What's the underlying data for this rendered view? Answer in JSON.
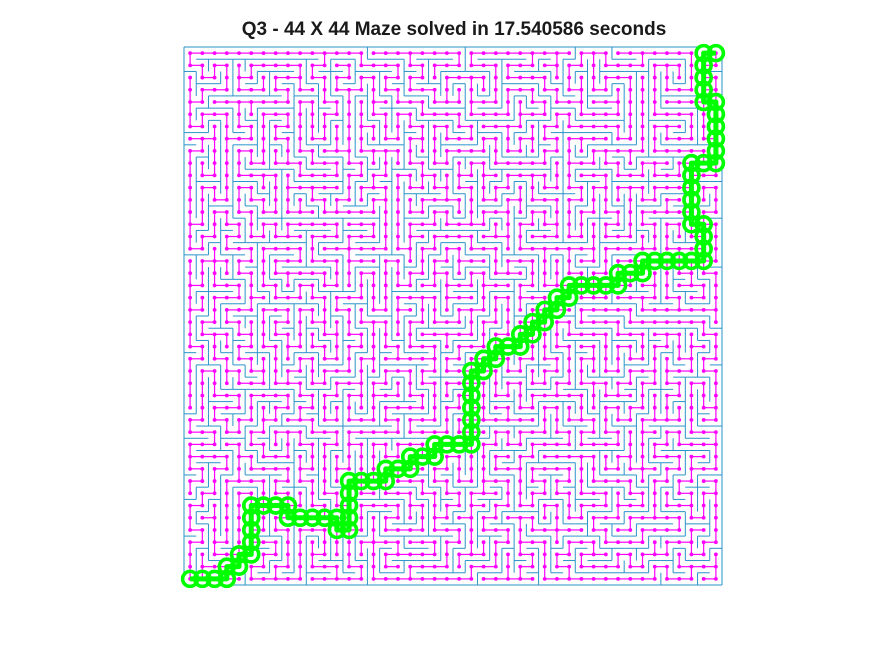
{
  "title": "Q3 - 44 X 44 Maze solved in 17.540586 seconds",
  "colors": {
    "background": "#ffffff",
    "maze_wall": "#2a93c9",
    "graph_edge": "#ff00ff",
    "solution_path": "#00ff00"
  },
  "maze": {
    "rows": 44,
    "cols": 44,
    "start_cell": [
      0,
      0
    ],
    "goal_cell": [
      43,
      43
    ],
    "solution_path_cells": [
      [
        0,
        0
      ],
      [
        1,
        0
      ],
      [
        2,
        0
      ],
      [
        3,
        0
      ],
      [
        3,
        1
      ],
      [
        4,
        1
      ],
      [
        4,
        2
      ],
      [
        5,
        2
      ],
      [
        5,
        3
      ],
      [
        5,
        4
      ],
      [
        5,
        5
      ],
      [
        5,
        6
      ],
      [
        6,
        6
      ],
      [
        7,
        6
      ],
      [
        8,
        6
      ],
      [
        8,
        5
      ],
      [
        9,
        5
      ],
      [
        10,
        5
      ],
      [
        11,
        5
      ],
      [
        12,
        5
      ],
      [
        12,
        4
      ],
      [
        13,
        4
      ],
      [
        13,
        5
      ],
      [
        13,
        6
      ],
      [
        13,
        7
      ],
      [
        13,
        8
      ],
      [
        14,
        8
      ],
      [
        15,
        8
      ],
      [
        16,
        8
      ],
      [
        16,
        9
      ],
      [
        17,
        9
      ],
      [
        18,
        9
      ],
      [
        18,
        10
      ],
      [
        19,
        10
      ],
      [
        20,
        10
      ],
      [
        20,
        11
      ],
      [
        21,
        11
      ],
      [
        22,
        11
      ],
      [
        23,
        11
      ],
      [
        23,
        12
      ],
      [
        23,
        13
      ],
      [
        23,
        14
      ],
      [
        23,
        15
      ],
      [
        23,
        16
      ],
      [
        23,
        17
      ],
      [
        24,
        17
      ],
      [
        24,
        18
      ],
      [
        25,
        18
      ],
      [
        25,
        19
      ],
      [
        26,
        19
      ],
      [
        27,
        19
      ],
      [
        27,
        20
      ],
      [
        28,
        20
      ],
      [
        28,
        21
      ],
      [
        29,
        21
      ],
      [
        29,
        22
      ],
      [
        30,
        22
      ],
      [
        30,
        23
      ],
      [
        31,
        23
      ],
      [
        31,
        24
      ],
      [
        32,
        24
      ],
      [
        33,
        24
      ],
      [
        34,
        24
      ],
      [
        35,
        24
      ],
      [
        35,
        25
      ],
      [
        36,
        25
      ],
      [
        37,
        25
      ],
      [
        37,
        26
      ],
      [
        38,
        26
      ],
      [
        39,
        26
      ],
      [
        40,
        26
      ],
      [
        41,
        26
      ],
      [
        42,
        26
      ],
      [
        42,
        27
      ],
      [
        42,
        28
      ],
      [
        42,
        29
      ],
      [
        41,
        29
      ],
      [
        41,
        30
      ],
      [
        41,
        31
      ],
      [
        41,
        32
      ],
      [
        41,
        33
      ],
      [
        41,
        34
      ],
      [
        42,
        34
      ],
      [
        43,
        34
      ],
      [
        43,
        35
      ],
      [
        43,
        36
      ],
      [
        43,
        37
      ],
      [
        43,
        38
      ],
      [
        43,
        39
      ],
      [
        42,
        39
      ],
      [
        42,
        40
      ],
      [
        42,
        41
      ],
      [
        42,
        42
      ],
      [
        42,
        43
      ],
      [
        43,
        43
      ]
    ]
  }
}
